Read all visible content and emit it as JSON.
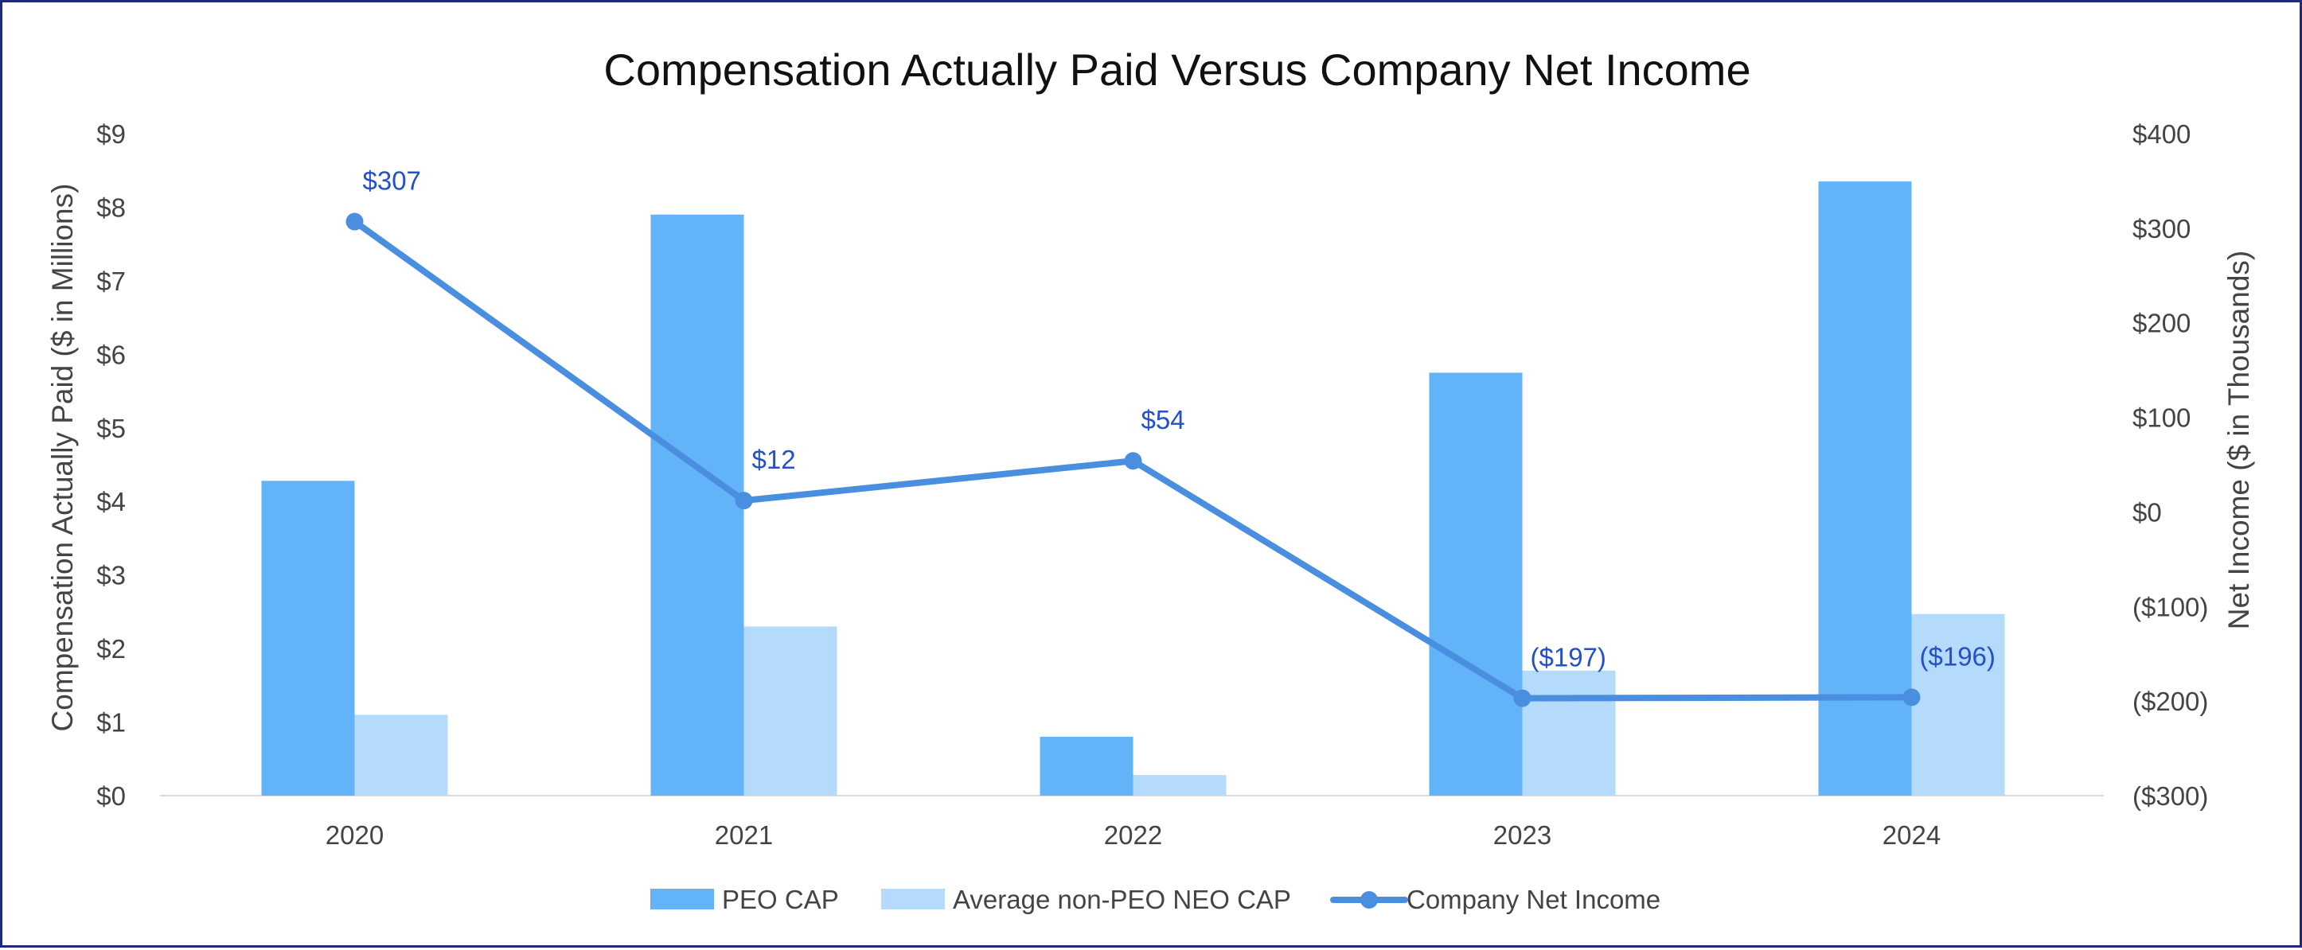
{
  "chart_data": {
    "type": "bar+line",
    "title": "Compensation Actually Paid Versus Company Net Income",
    "categories": [
      "2020",
      "2021",
      "2022",
      "2023",
      "2024"
    ],
    "y_left": {
      "label": "Compensation Actually Paid ($ in Millions)",
      "range": [
        0,
        9
      ],
      "ticks": [
        "$0",
        "$1",
        "$2",
        "$3",
        "$4",
        "$5",
        "$6",
        "$7",
        "$8",
        "$9"
      ]
    },
    "y_right": {
      "label": "Net Income ($ in Thousands)",
      "range": [
        -300,
        400
      ],
      "ticks": [
        "($300)",
        "($200)",
        "($100)",
        "$0",
        "$100",
        "$200",
        "$300",
        "$400"
      ]
    },
    "series": [
      {
        "name": "PEO CAP",
        "type": "bar",
        "axis": "left",
        "color": "#62b3f8",
        "values": [
          4.28,
          7.9,
          0.8,
          5.75,
          8.35
        ]
      },
      {
        "name": "Average non-PEO NEO CAP",
        "type": "bar",
        "axis": "left",
        "color": "#b4dbfb",
        "values": [
          1.1,
          2.3,
          0.28,
          1.7,
          2.47
        ]
      },
      {
        "name": "Company Net Income",
        "type": "line",
        "axis": "right",
        "color": "#4a8fdf",
        "values": [
          307,
          12,
          54,
          -197,
          -196
        ],
        "labels": [
          "$307",
          "$12",
          "$54",
          "($197)",
          "($196)"
        ]
      }
    ],
    "legend": "bottom"
  }
}
